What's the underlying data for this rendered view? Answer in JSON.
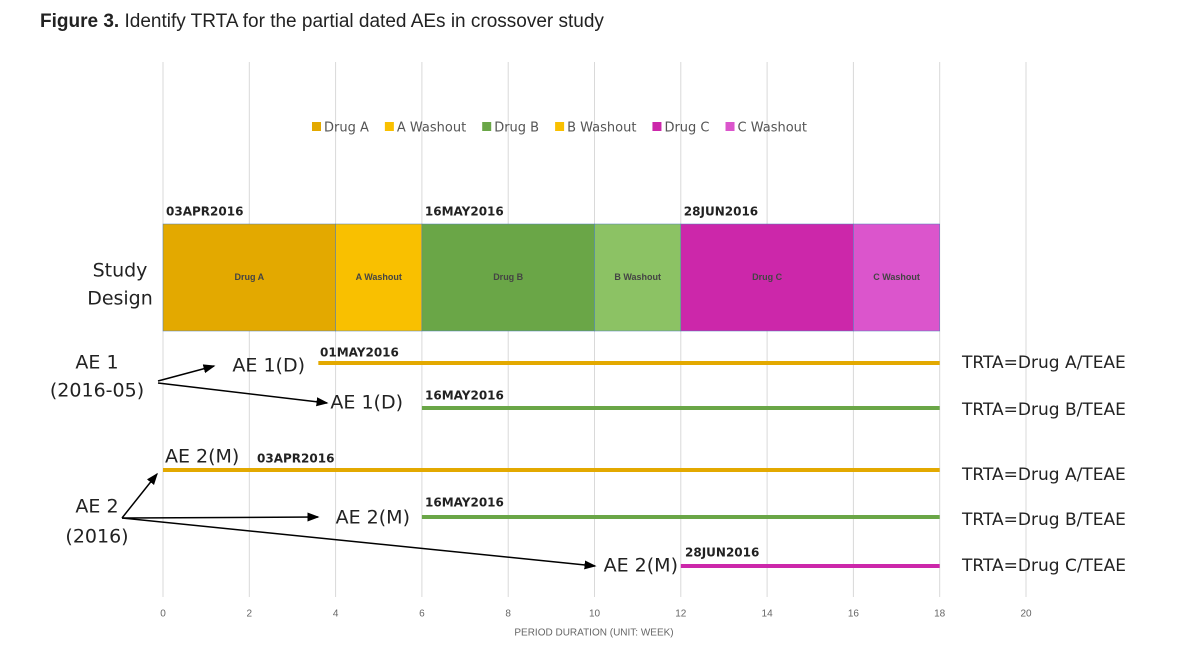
{
  "chart_data": {
    "type": "gantt",
    "title_prefix": "Figure 3.",
    "title": "Identify TRTA for the partial dated AEs in crossover study",
    "xlabel": "PERIOD DURATION (UNIT: WEEK)",
    "xlim": [
      0,
      20
    ],
    "xticks": [
      0,
      2,
      4,
      6,
      8,
      10,
      12,
      14,
      16,
      18,
      20
    ],
    "grid": true,
    "design_label": [
      "Study",
      "Design"
    ],
    "segments": [
      {
        "name": "Drug A",
        "start": 0,
        "end": 4,
        "color": "#e3a900",
        "legend_color": "#e3a900"
      },
      {
        "name": "A Washout",
        "start": 4,
        "end": 6,
        "color": "#f9c000",
        "legend_color": "#f9c000"
      },
      {
        "name": "Drug B",
        "start": 6,
        "end": 10,
        "color": "#6aa647",
        "legend_color": "#6aa647"
      },
      {
        "name": "B Washout",
        "start": 10,
        "end": 12,
        "color": "#8cc264",
        "legend_color": "#f9c000"
      },
      {
        "name": "Drug C",
        "start": 12,
        "end": 16,
        "color": "#cc27aa",
        "legend_color": "#cc27aa"
      },
      {
        "name": "C Washout",
        "start": 16,
        "end": 18,
        "color": "#db55cc",
        "legend_color": "#db55cc"
      }
    ],
    "design_dates": [
      {
        "label": "03APR2016",
        "at": 0
      },
      {
        "label": "16MAY2016",
        "at": 6
      },
      {
        "label": "28JUN2016",
        "at": 12
      }
    ],
    "groups": [
      {
        "label": [
          "AE 1",
          "(2016-05)"
        ]
      },
      {
        "label": [
          "AE 2",
          "(2016)"
        ]
      }
    ],
    "ae_lines": [
      {
        "ae": "AE 1(D)",
        "date": "01MAY2016",
        "start": 3.6,
        "end": 18,
        "color": "#e3a900",
        "trta": "TRTA=Drug A/TEAE"
      },
      {
        "ae": "AE 1(D)",
        "date": "16MAY2016",
        "start": 6,
        "end": 18,
        "color": "#6aa647",
        "trta": "TRTA=Drug B/TEAE"
      },
      {
        "ae": "AE 2(M)",
        "date": "03APR2016",
        "start": 0,
        "end": 18,
        "color": "#e3a900",
        "trta": "TRTA=Drug A/TEAE"
      },
      {
        "ae": "AE 2(M)",
        "date": "16MAY2016",
        "start": 6,
        "end": 18,
        "color": "#6aa647",
        "trta": "TRTA=Drug B/TEAE"
      },
      {
        "ae": "AE 2(M)",
        "date": "28JUN2016",
        "start": 12,
        "end": 18,
        "color": "#cc27aa",
        "trta": "TRTA=Drug C/TEAE"
      }
    ]
  }
}
